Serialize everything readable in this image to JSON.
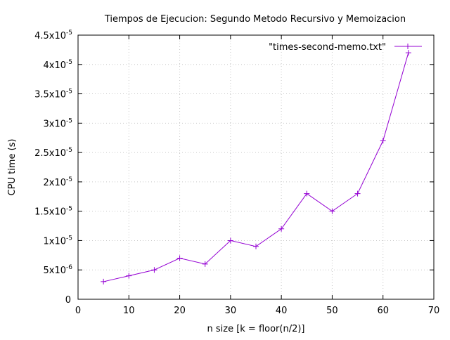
{
  "chart_data": {
    "type": "line",
    "title": "Tiempos de Ejecucion: Segundo Metodo Recursivo y Memoizacion",
    "xlabel": "n size [k = floor(n/2)]",
    "ylabel": "CPU time (s)",
    "xlim": [
      0,
      70
    ],
    "ylim": [
      0,
      4.5e-05
    ],
    "grid": true,
    "legend_position": "top-right",
    "x_ticks": [
      {
        "value": 0,
        "label": "0"
      },
      {
        "value": 10,
        "label": "10"
      },
      {
        "value": 20,
        "label": "20"
      },
      {
        "value": 30,
        "label": "30"
      },
      {
        "value": 40,
        "label": "40"
      },
      {
        "value": 50,
        "label": "50"
      },
      {
        "value": 60,
        "label": "60"
      },
      {
        "value": 70,
        "label": "70"
      }
    ],
    "y_ticks": [
      {
        "value": 0,
        "mant": "0",
        "exp": ""
      },
      {
        "value": 5e-06,
        "mant": "5x10",
        "exp": "-6"
      },
      {
        "value": 1e-05,
        "mant": "1x10",
        "exp": "-5"
      },
      {
        "value": 1.5e-05,
        "mant": "1.5x10",
        "exp": "-5"
      },
      {
        "value": 2e-05,
        "mant": "2x10",
        "exp": "-5"
      },
      {
        "value": 2.5e-05,
        "mant": "2.5x10",
        "exp": "-5"
      },
      {
        "value": 3e-05,
        "mant": "3x10",
        "exp": "-5"
      },
      {
        "value": 3.5e-05,
        "mant": "3.5x10",
        "exp": "-5"
      },
      {
        "value": 4e-05,
        "mant": "4x10",
        "exp": "-5"
      },
      {
        "value": 4.5e-05,
        "mant": "4.5x10",
        "exp": "-5"
      }
    ],
    "series": [
      {
        "name": "\"times-second-memo.txt\"",
        "color": "#9400d3",
        "x": [
          5,
          10,
          15,
          20,
          25,
          30,
          35,
          40,
          45,
          50,
          55,
          60,
          65
        ],
        "y": [
          3e-06,
          4e-06,
          5e-06,
          7e-06,
          6e-06,
          1e-05,
          9e-06,
          1.2e-05,
          1.8e-05,
          1.5e-05,
          1.8e-05,
          2.7e-05,
          4.2e-05
        ]
      }
    ]
  }
}
